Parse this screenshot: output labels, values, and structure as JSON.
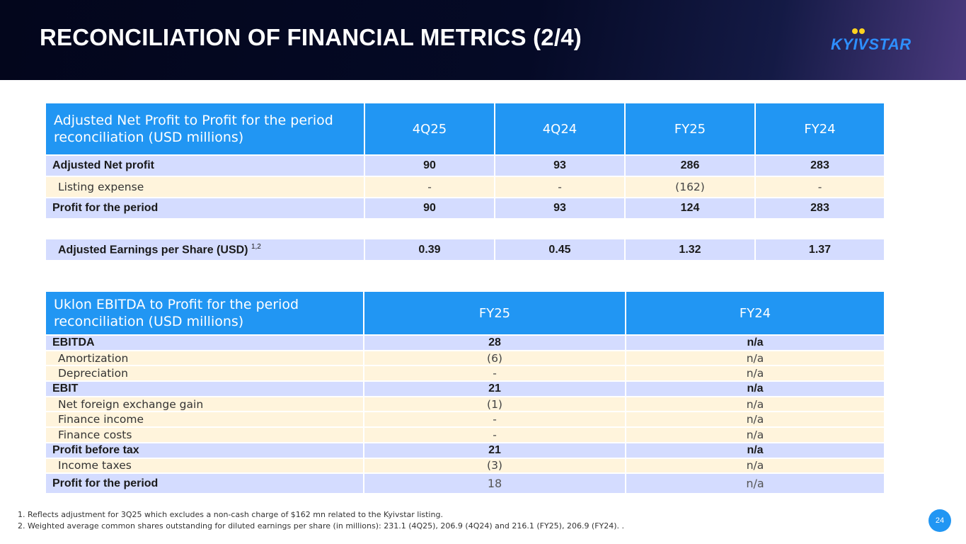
{
  "title": "RECONCILIATION OF FINANCIAL METRICS (2/4)",
  "logo": {
    "text": "KYIVSTAR",
    "colors": {
      "text": "#2e8fff",
      "dots": "#ffd21f"
    }
  },
  "table1": {
    "header": {
      "label": "Adjusted Net Profit to Profit for the period reconciliation (USD millions)",
      "cols": [
        "4Q25",
        "4Q24",
        "FY25",
        "FY24"
      ]
    },
    "rows": [
      {
        "label": "Adjusted Net profit",
        "values": [
          "90",
          "93",
          "286",
          "283"
        ]
      },
      {
        "label": "Listing expense",
        "values": [
          "-",
          "-",
          "(162)",
          "-"
        ]
      },
      {
        "label": "Profit for the period",
        "values": [
          "90",
          "93",
          "124",
          "283"
        ]
      }
    ]
  },
  "table2": {
    "label": "Adjusted Earnings per Share (USD)",
    "superscript": "1,2",
    "values": [
      "0.39",
      "0.45",
      "1.32",
      "1.37"
    ]
  },
  "table3": {
    "header": {
      "label": "Uklon EBITDA to Profit for the period reconciliation (USD millions)",
      "cols": [
        "FY25",
        "FY24"
      ]
    },
    "rows": [
      {
        "label": "EBITDA",
        "values": [
          "28",
          "n/a"
        ]
      },
      {
        "label": "Amortization",
        "values": [
          "(6)",
          "n/a"
        ]
      },
      {
        "label": "Depreciation",
        "values": [
          "-",
          "n/a"
        ]
      },
      {
        "label": "EBIT",
        "values": [
          "21",
          "n/a"
        ]
      },
      {
        "label": "Net foreign exchange gain",
        "values": [
          "(1)",
          "n/a"
        ]
      },
      {
        "label": "Finance income",
        "values": [
          "-",
          "n/a"
        ]
      },
      {
        "label": "Finance costs",
        "values": [
          "-",
          "n/a"
        ]
      },
      {
        "label": "Profit before tax",
        "values": [
          "21",
          "n/a"
        ]
      },
      {
        "label": "Income taxes",
        "values": [
          "(3)",
          "n/a"
        ]
      },
      {
        "label": "Profit for the period",
        "values": [
          "18",
          "n/a"
        ]
      }
    ]
  },
  "footnotes": [
    "1. Reflects adjustment for 3Q25 which excludes a non-cash charge of $162 mn related to the Kyivstar listing.",
    "2. Weighted average common shares outstanding for diluted earnings per share (in millions): 231.1 (4Q25), 206.9 (4Q24) and 216.1 (FY25), 206.9 (FY24). ."
  ],
  "page_number": "24"
}
